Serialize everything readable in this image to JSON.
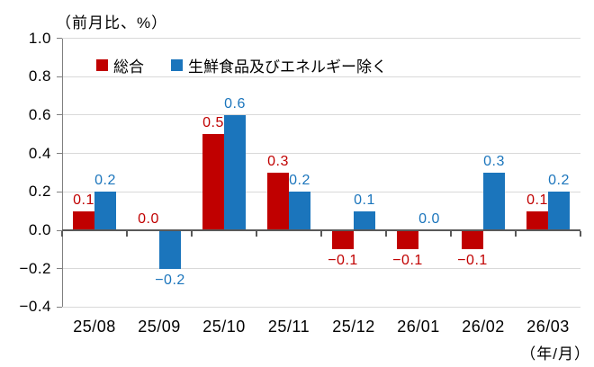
{
  "chart_data": {
    "type": "bar",
    "title": "（前月比、%）",
    "categories": [
      "25/08",
      "25/09",
      "25/10",
      "25/11",
      "25/12",
      "26/01",
      "26/02",
      "26/03"
    ],
    "series": [
      {
        "name": "総合",
        "color": "#C00000",
        "values": [
          0.1,
          0.0,
          0.5,
          0.3,
          -0.1,
          -0.1,
          -0.1,
          0.1
        ]
      },
      {
        "name": "生鮮食品及びエネルギー除く",
        "color": "#1B75BC",
        "values": [
          0.2,
          -0.2,
          0.6,
          0.2,
          0.1,
          0.0,
          0.3,
          0.2
        ]
      }
    ],
    "ylim": [
      -0.4,
      1.0
    ],
    "ytick_step": 0.2,
    "xlabel_note": "（年/月）",
    "grid": true,
    "legend_position": "top",
    "colors": {
      "gridline": "#d9d9d9",
      "axis": "#595959",
      "text": "#000000"
    }
  }
}
